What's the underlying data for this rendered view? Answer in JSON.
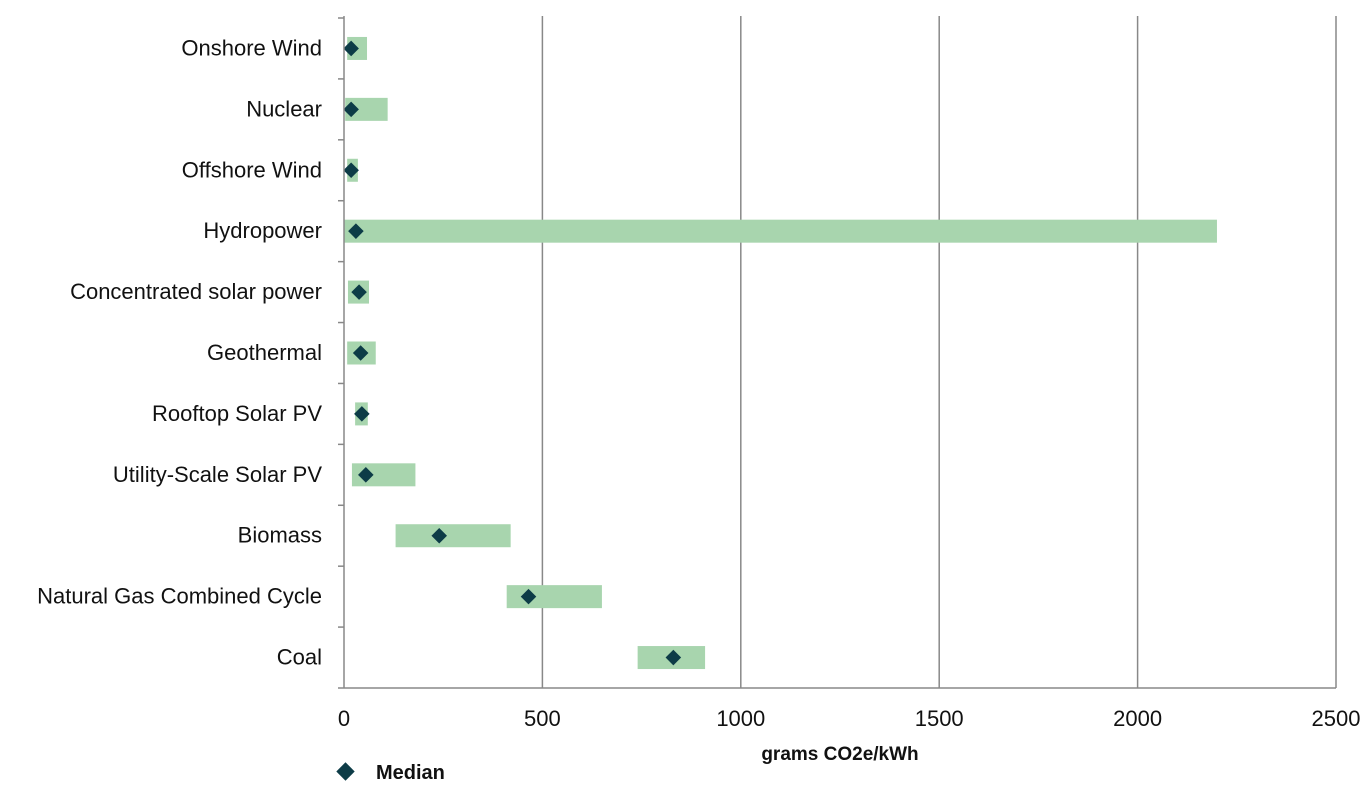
{
  "chart_data": {
    "type": "range-bar",
    "orientation": "horizontal",
    "xlabel": "grams CO2e/kWh",
    "xlim": [
      0,
      2500
    ],
    "xticks": [
      0,
      500,
      1000,
      1500,
      2000,
      2500
    ],
    "grid": "vertical",
    "categories": [
      "Onshore Wind",
      "Nuclear",
      "Offshore Wind",
      "Hydropower",
      "Concentrated solar power",
      "Geothermal",
      "Rooftop Solar PV",
      "Utility-Scale Solar PV",
      "Biomass",
      "Natural Gas Combined Cycle",
      "Coal"
    ],
    "ranges": [
      [
        8,
        58
      ],
      [
        3,
        110
      ],
      [
        8,
        35
      ],
      [
        0,
        2200
      ],
      [
        10,
        63
      ],
      [
        8,
        80
      ],
      [
        28,
        60
      ],
      [
        20,
        180
      ],
      [
        130,
        420
      ],
      [
        410,
        650
      ],
      [
        740,
        910
      ]
    ],
    "series": [
      {
        "name": "Median",
        "values": [
          18,
          18,
          18,
          30,
          38,
          42,
          45,
          55,
          240,
          465,
          830
        ]
      }
    ],
    "legend_position": "bottom-left",
    "colors": {
      "range": "#a8d5ae",
      "median": "#0d3c47",
      "grid": "#888888",
      "axis": "#888888"
    }
  }
}
